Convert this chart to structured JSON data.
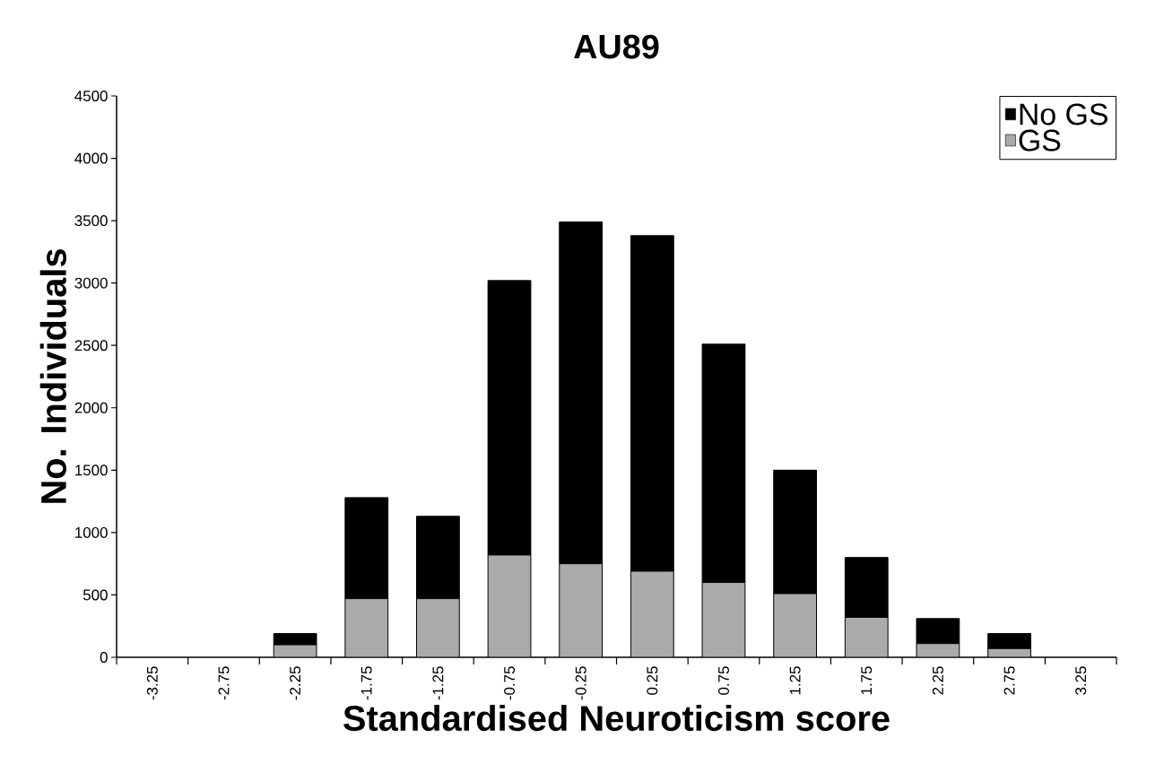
{
  "chart_data": {
    "type": "bar",
    "title": "AU89",
    "xlabel": "Standardised Neuroticism score",
    "ylabel": "No. Individuals",
    "categories": [
      "-3.25",
      "-2.75",
      "-2.25",
      "-1.75",
      "-1.25",
      "-0.75",
      "-0.25",
      "0.25",
      "0.75",
      "1.25",
      "1.75",
      "2.25",
      "2.75",
      "3.25"
    ],
    "stacked": true,
    "legend": "top right",
    "grid": false,
    "ylim": [
      0,
      4500
    ],
    "yticks": [
      0,
      500,
      1000,
      1500,
      2000,
      2500,
      3000,
      3500,
      4000,
      4500
    ],
    "series": [
      {
        "name": "GS",
        "color": "#aaaaaa",
        "values": [
          0,
          0,
          100,
          470,
          470,
          820,
          750,
          690,
          600,
          510,
          320,
          110,
          70,
          0
        ]
      },
      {
        "name": "No GS",
        "color": "#000000",
        "values": [
          0,
          0,
          90,
          810,
          660,
          2200,
          2740,
          2690,
          1910,
          990,
          480,
          200,
          120,
          0
        ]
      }
    ]
  }
}
